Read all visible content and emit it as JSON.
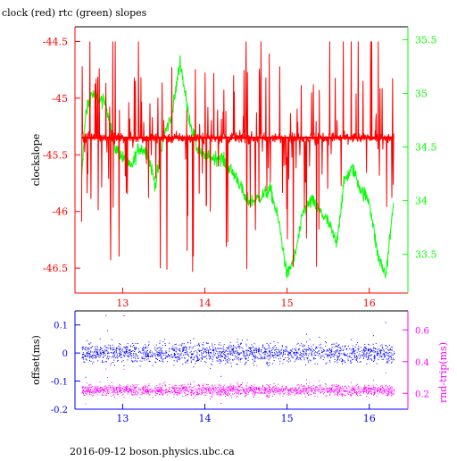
{
  "title": "clock (red) rtc (green) slopes",
  "footer": "2016-09-12 boson.physics.ubc.ca",
  "colors": {
    "clock": "#ff0000",
    "rtc": "#00ff00",
    "offset": "#0000ff",
    "rndtrip": "#ff00ff",
    "axis_top_left": "#ff0000",
    "axis_top_right": "#00ff00",
    "axis_bottom_left": "#0000ff",
    "axis_bottom_right": "#ff00ff",
    "frame": "#000000"
  },
  "chart_data": [
    {
      "type": "line",
      "title": "clock (red) rtc (green) slopes",
      "ylabel": "clockslope",
      "x_ticks": [
        13,
        14,
        15,
        16
      ],
      "xlim": [
        12.42,
        16.47
      ],
      "y_left": {
        "ylim": [
          -46.72,
          -44.37
        ],
        "ticks": [
          -44.5,
          -45,
          -45.5,
          -46,
          -46.5
        ]
      },
      "y_right": {
        "ylim": [
          33.14,
          35.62
        ],
        "ticks": [
          35.5,
          35,
          34.5,
          34,
          33.5
        ]
      },
      "series": [
        {
          "name": "clock (red)",
          "axis": "left",
          "baseline": -45.35,
          "x_range": [
            12.5,
            16.3
          ],
          "noise_range": [
            -46.6,
            -44.5
          ]
        },
        {
          "name": "rtc (green)",
          "axis": "right",
          "x": [
            12.5,
            12.55,
            12.62,
            12.7,
            12.8,
            12.9,
            13.0,
            13.1,
            13.2,
            13.3,
            13.4,
            13.5,
            13.6,
            13.7,
            13.8,
            13.9,
            14.0,
            14.1,
            14.2,
            14.3,
            14.4,
            14.5,
            14.6,
            14.7,
            14.8,
            14.9,
            15.0,
            15.1,
            15.2,
            15.3,
            15.4,
            15.5,
            15.6,
            15.7,
            15.8,
            15.9,
            16.0,
            16.1,
            16.2,
            16.3
          ],
          "values": [
            34.2,
            34.8,
            35.0,
            34.95,
            34.9,
            34.5,
            34.4,
            34.3,
            34.5,
            34.45,
            34.15,
            34.6,
            34.8,
            35.3,
            34.8,
            34.5,
            34.4,
            34.4,
            34.4,
            34.3,
            34.2,
            34.0,
            34.0,
            34.05,
            34.1,
            33.8,
            33.3,
            33.5,
            33.9,
            34.0,
            33.9,
            33.8,
            33.6,
            34.2,
            34.3,
            34.1,
            34.0,
            33.5,
            33.3,
            34.0
          ]
        }
      ]
    },
    {
      "type": "scatter",
      "ylabel_left": "offset(ms)",
      "ylabel_right": "rnd-trip(ms)",
      "x_ticks": [
        13,
        14,
        15,
        16
      ],
      "xlim": [
        12.42,
        16.47
      ],
      "y_left": {
        "ylim": [
          -0.2,
          0.15
        ],
        "ticks": [
          0.1,
          0,
          -0.1,
          -0.2
        ]
      },
      "y_right": {
        "ylim": [
          0.1,
          0.72
        ],
        "ticks": [
          0.6,
          0.4,
          0.2
        ]
      },
      "series": [
        {
          "name": "offset",
          "axis": "left",
          "center": 0.0,
          "spread": 0.06
        },
        {
          "name": "rnd-trip",
          "axis": "right",
          "center": 0.22,
          "spread": 0.06
        }
      ]
    }
  ]
}
